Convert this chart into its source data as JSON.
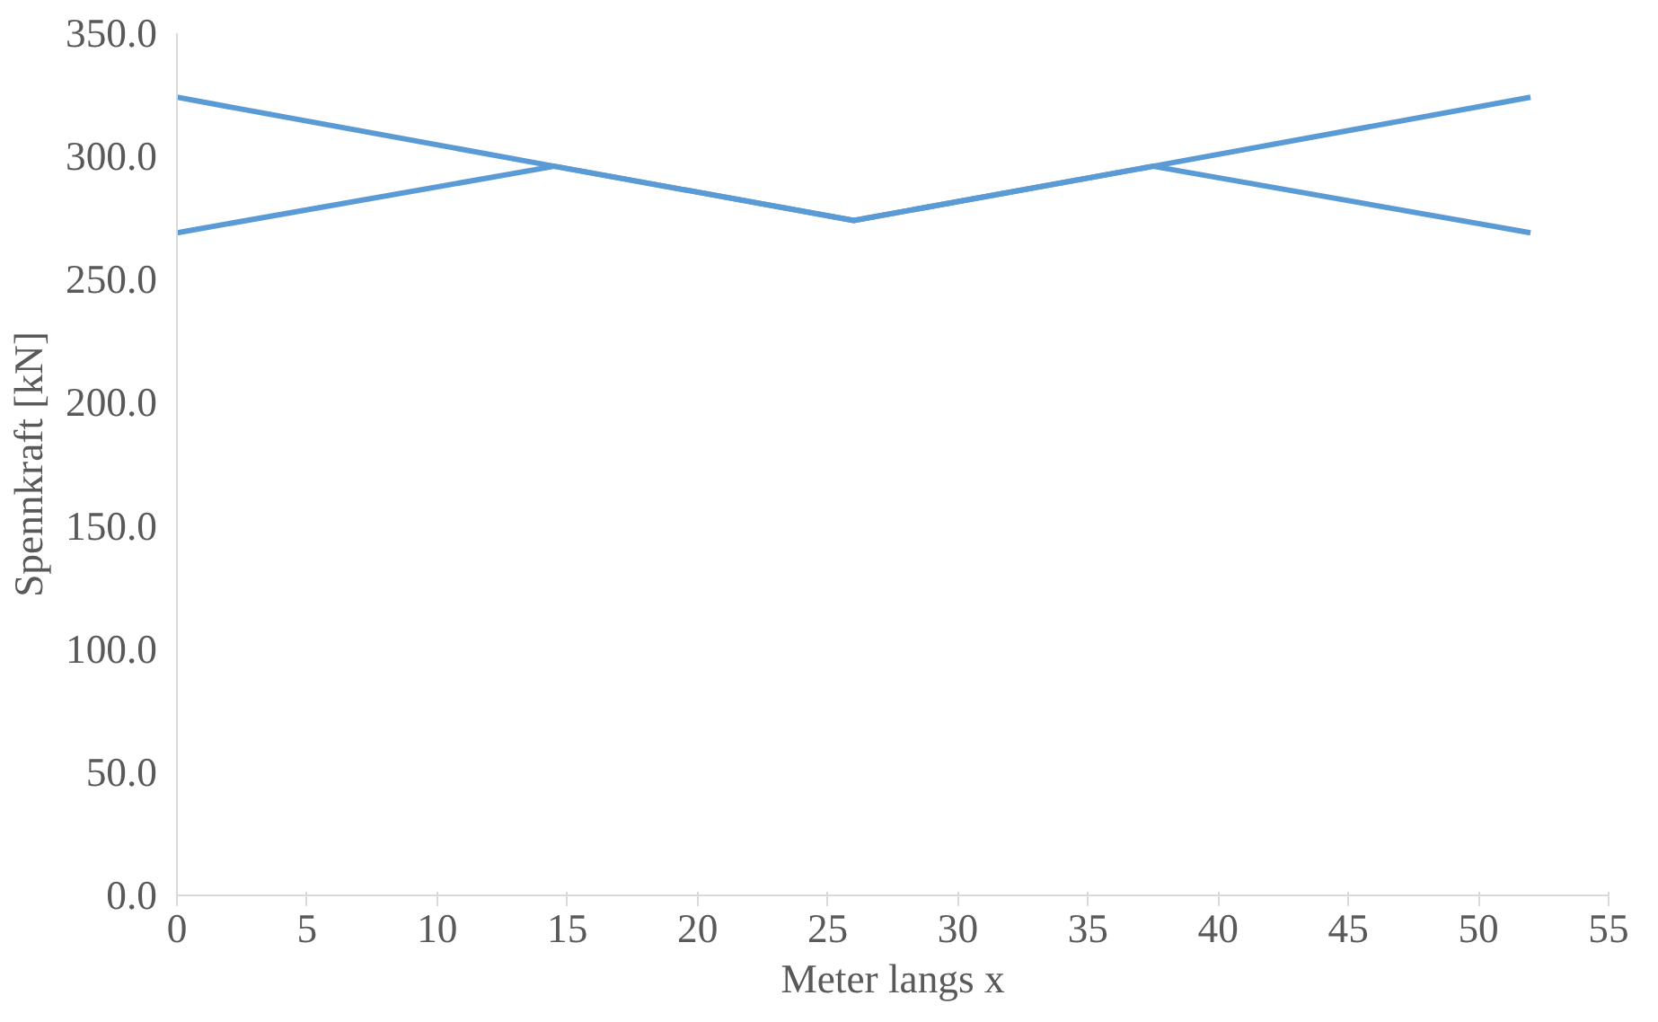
{
  "chart_data": {
    "type": "line",
    "xlabel": "Meter langs x",
    "ylabel": "Spennkraft [kN]",
    "series": [
      {
        "color": "#5b9bd5",
        "x": [
          0,
          14.5,
          26,
          37.5,
          52
        ],
        "values": [
          324,
          296,
          274,
          296,
          269
        ]
      },
      {
        "color": "#5b9bd5",
        "x": [
          0,
          14.5,
          26,
          37.5,
          52
        ],
        "values": [
          269,
          296,
          274,
          296,
          324
        ]
      }
    ],
    "xlim": [
      0,
      55
    ],
    "ylim": [
      0,
      350
    ],
    "xticks": [
      0,
      5,
      10,
      15,
      20,
      25,
      30,
      35,
      40,
      45,
      50,
      55
    ],
    "yticks": [
      {
        "value": 0,
        "label": "0.0"
      },
      {
        "value": 50,
        "label": "50.0"
      },
      {
        "value": 100,
        "label": "100.0"
      },
      {
        "value": 150,
        "label": "150.0"
      },
      {
        "value": 200,
        "label": "200.0"
      },
      {
        "value": 250,
        "label": "250.0"
      },
      {
        "value": 300,
        "label": "300.0"
      },
      {
        "value": 350,
        "label": "350.0"
      }
    ],
    "grid": false,
    "marker": "none",
    "line_style": "solid"
  }
}
